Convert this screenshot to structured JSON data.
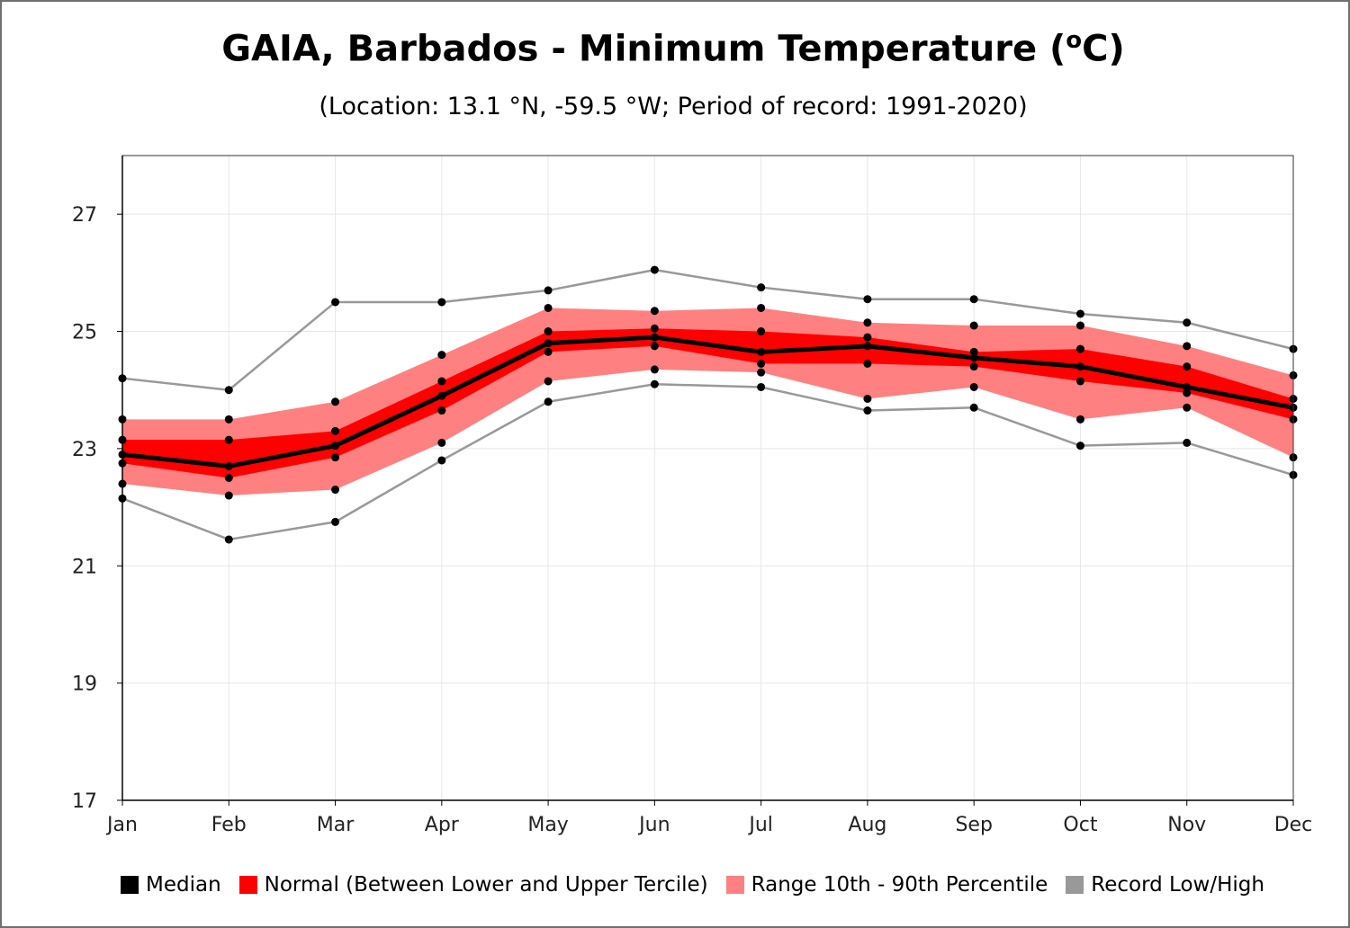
{
  "chart_title": "GAIA, Barbados - Minimum Temperature (",
  "chart_title_sup": "o",
  "chart_title_end": "C)",
  "subtitle": "(Location: 13.1 °N, -59.5 °W; Period of record: 1991-2020)",
  "chart_data": {
    "type": "line",
    "categories": [
      "Jan",
      "Feb",
      "Mar",
      "Apr",
      "May",
      "Jun",
      "Jul",
      "Aug",
      "Sep",
      "Oct",
      "Nov",
      "Dec"
    ],
    "ylim": [
      17,
      28
    ],
    "yticks": [
      17,
      19,
      21,
      23,
      25,
      27
    ],
    "grid": true,
    "legend_position": "bottom",
    "series": [
      {
        "name": "Median",
        "values": [
          22.9,
          22.7,
          23.05,
          23.9,
          24.8,
          24.9,
          24.65,
          24.75,
          24.55,
          24.4,
          24.05,
          23.7
        ]
      },
      {
        "name": "Normal (Between Lower and Upper Tercile)",
        "lower": [
          22.75,
          22.5,
          22.85,
          23.65,
          24.65,
          24.75,
          24.45,
          24.45,
          24.4,
          24.15,
          23.95,
          23.5
        ],
        "upper": [
          23.15,
          23.15,
          23.3,
          24.15,
          25.0,
          25.05,
          25.0,
          24.9,
          24.65,
          24.7,
          24.4,
          23.85
        ]
      },
      {
        "name": "Range 10th - 90th Percentile",
        "lower": [
          22.4,
          22.2,
          22.3,
          23.1,
          24.15,
          24.35,
          24.3,
          23.85,
          24.05,
          23.5,
          23.7,
          22.85
        ],
        "upper": [
          23.5,
          23.5,
          23.8,
          24.6,
          25.4,
          25.35,
          25.4,
          25.15,
          25.1,
          25.1,
          24.75,
          24.25
        ]
      },
      {
        "name": "Record Low/High",
        "lower": [
          22.15,
          21.45,
          21.75,
          22.8,
          23.8,
          24.1,
          24.05,
          23.65,
          23.7,
          23.05,
          23.1,
          22.55
        ],
        "upper": [
          24.2,
          24.0,
          25.5,
          25.5,
          25.7,
          26.05,
          25.75,
          25.55,
          25.55,
          25.3,
          25.15,
          24.7
        ]
      }
    ]
  },
  "colors": {
    "median": "#000000",
    "normal": "#ff0000",
    "range": "#ff8080",
    "record": "#999999",
    "grid": "#e6e6e6"
  }
}
